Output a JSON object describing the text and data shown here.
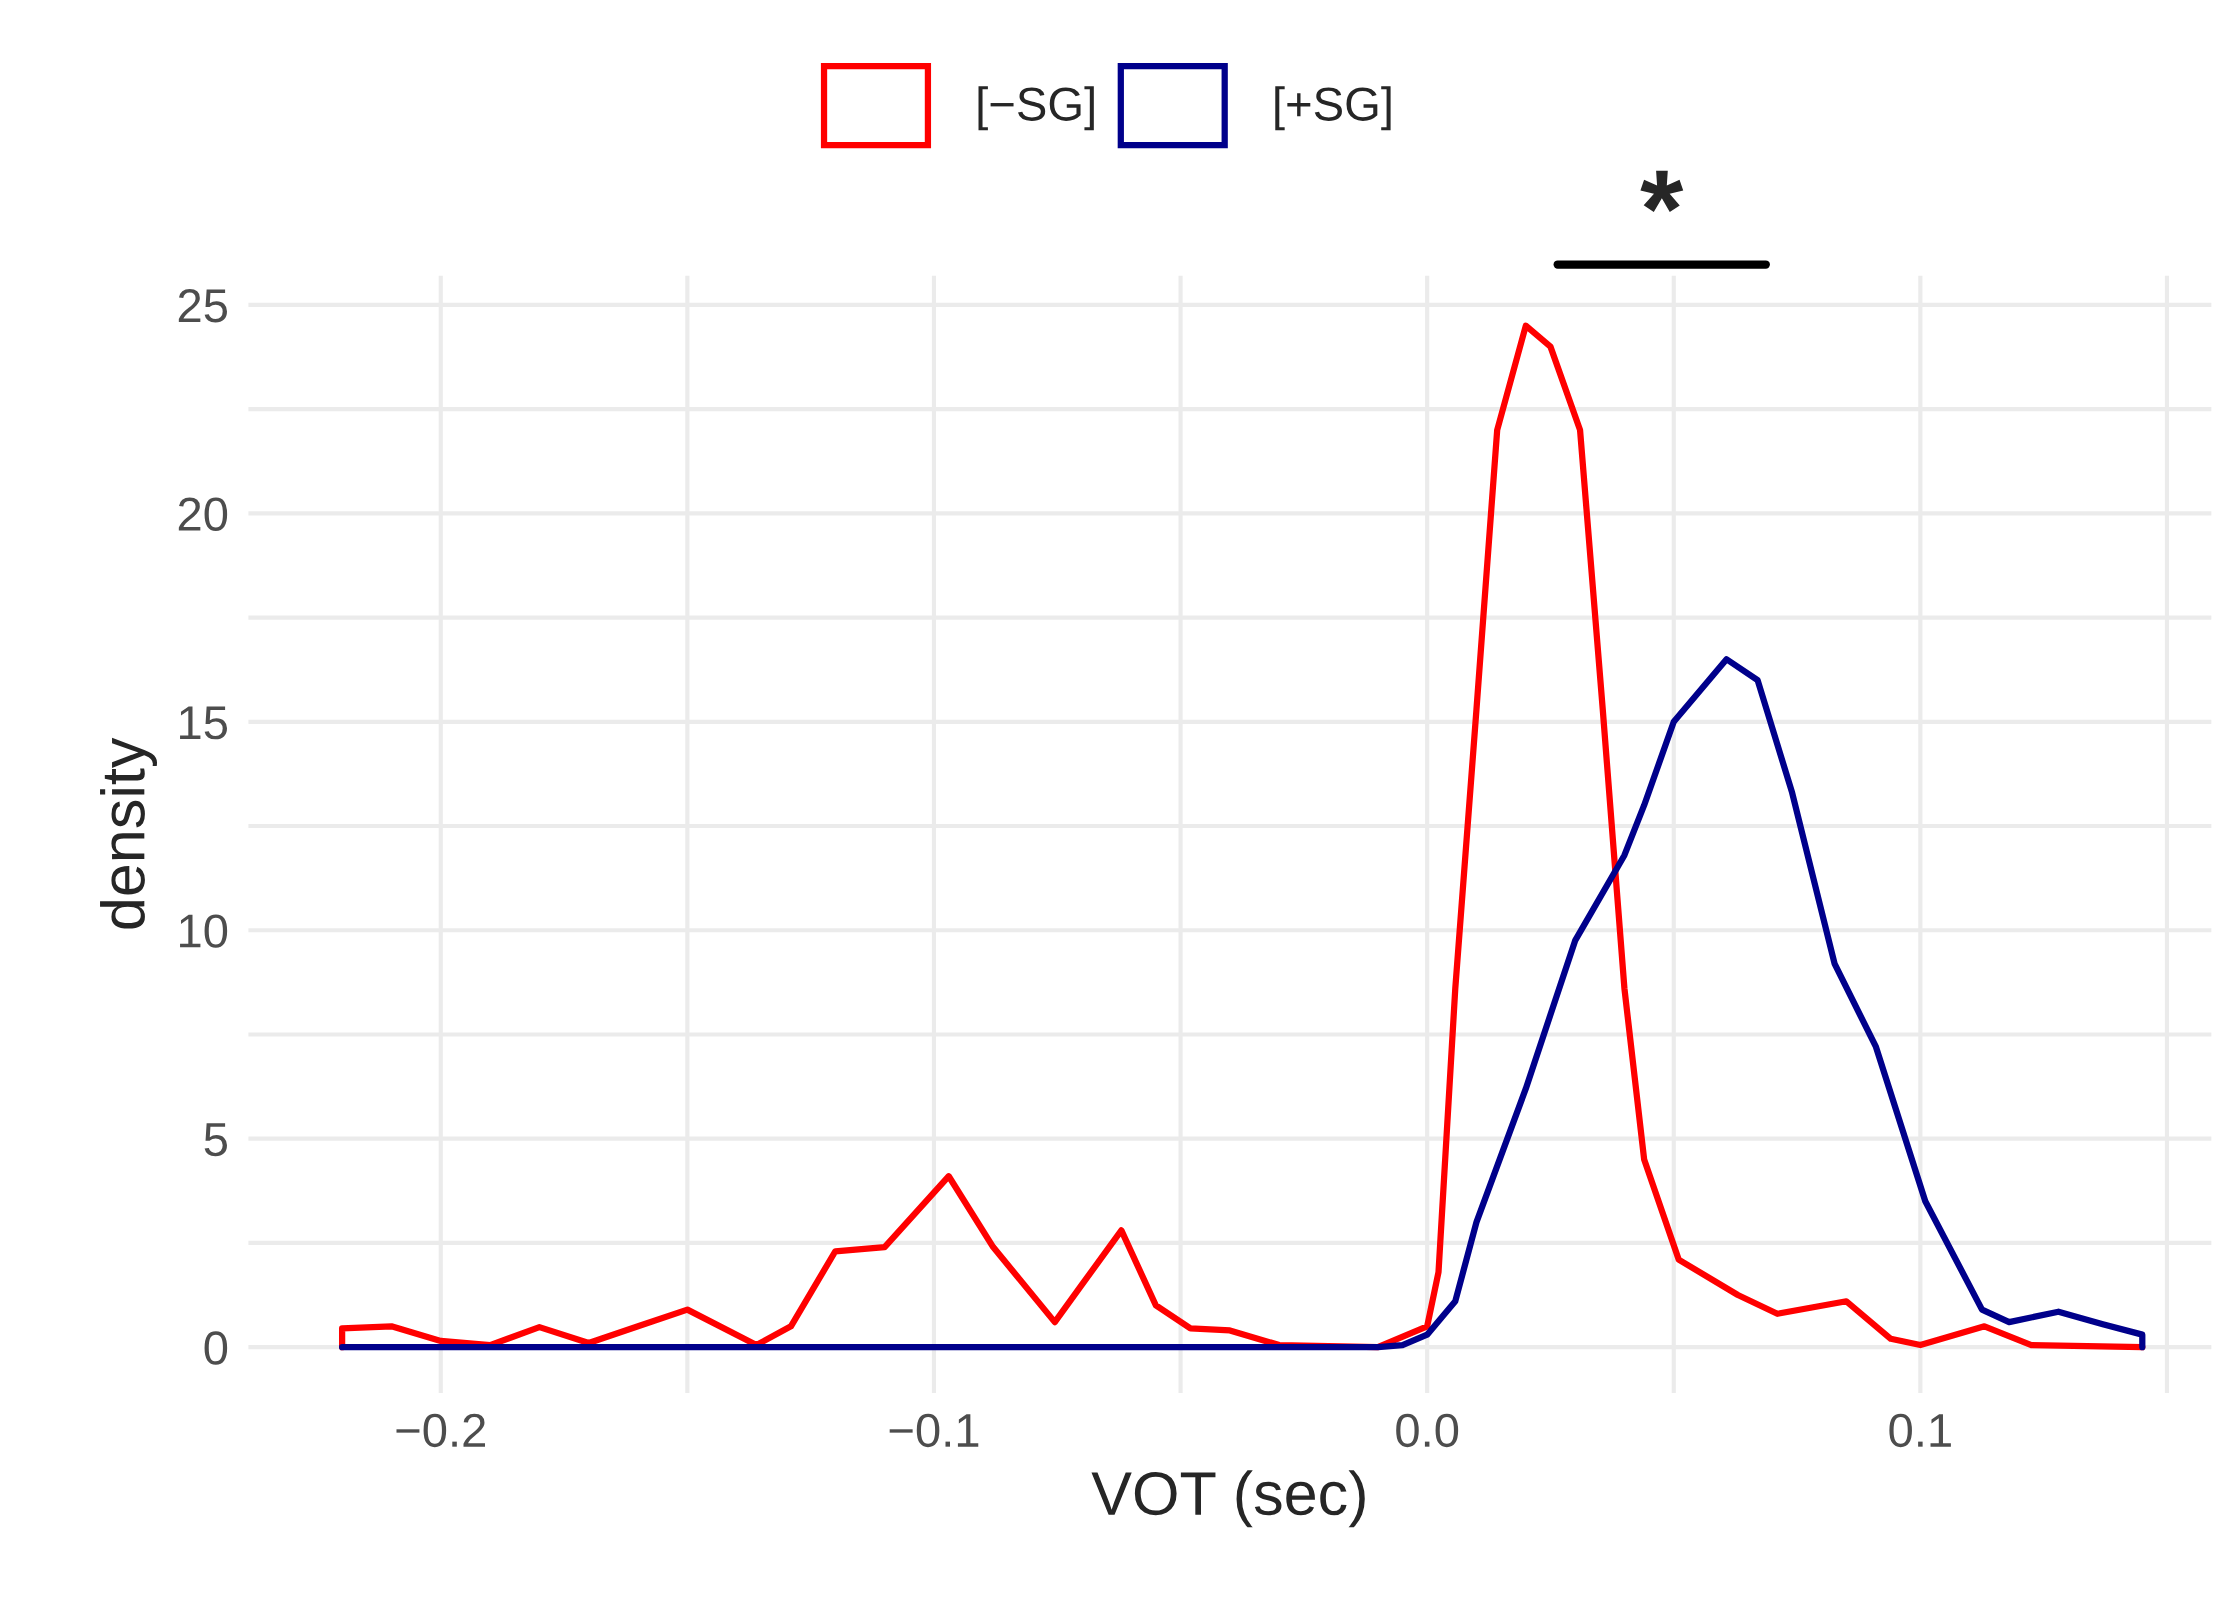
{
  "chart_data": {
    "type": "line",
    "xlabel": "VOT (sec)",
    "ylabel": "density",
    "xlim": [
      -0.239,
      0.159
    ],
    "ylim": [
      -1.1,
      25.7
    ],
    "xticks": [
      {
        "value": -0.2,
        "label": "−0.2"
      },
      {
        "value": -0.15,
        "label": null
      },
      {
        "value": -0.1,
        "label": "−0.1"
      },
      {
        "value": -0.05,
        "label": null
      },
      {
        "value": 0.0,
        "label": "0.0"
      },
      {
        "value": 0.05,
        "label": null
      },
      {
        "value": 0.1,
        "label": "0.1"
      },
      {
        "value": 0.15,
        "label": null
      }
    ],
    "yticks": [
      0,
      {
        "value": 2.5,
        "label": null
      },
      5,
      {
        "value": 7.5,
        "label": null
      },
      10,
      {
        "value": 12.5,
        "label": null
      },
      15,
      {
        "value": 17.5,
        "label": null
      },
      20,
      {
        "value": 22.5,
        "label": null
      },
      25
    ],
    "grid": true,
    "legend": "top",
    "series": [
      {
        "name": "[−SG]",
        "color": "#ff0000",
        "x": [
          -0.22,
          -0.22,
          -0.21,
          -0.2,
          -0.19,
          -0.18,
          -0.17,
          -0.16,
          -0.15,
          -0.136,
          -0.129,
          -0.12,
          -0.11,
          -0.097,
          -0.088,
          -0.0755,
          -0.07,
          -0.062,
          -0.055,
          -0.048,
          -0.04,
          -0.03,
          -0.01,
          0.0,
          0.0023,
          0.0057,
          0.01,
          0.0142,
          0.02,
          0.025,
          0.031,
          0.0356,
          0.04,
          0.044,
          0.051,
          0.063,
          0.071,
          0.085,
          0.094,
          0.1,
          0.113,
          0.1225,
          0.145
        ],
        "values": [
          0.0,
          0.45,
          0.5,
          0.15,
          0.05,
          0.48,
          0.1,
          0.5,
          0.9,
          0.05,
          0.5,
          2.3,
          2.4,
          4.1,
          2.4,
          0.6,
          1.5,
          2.8,
          1.0,
          0.45,
          0.4,
          0.05,
          0.0,
          0.5,
          1.8,
          8.6,
          15.3,
          22.0,
          24.5,
          24.0,
          22.0,
          15.3,
          8.6,
          4.5,
          2.1,
          1.25,
          0.8,
          1.1,
          0.2,
          0.05,
          0.5,
          0.05,
          0.0
        ]
      },
      {
        "name": "[+SG]",
        "color": "#00008b",
        "x": [
          -0.22,
          -0.01,
          -0.005,
          0.0,
          0.0057,
          0.01,
          0.02,
          0.03,
          0.04,
          0.044,
          0.05,
          0.0607,
          0.067,
          0.074,
          0.0826,
          0.091,
          0.101,
          0.1125,
          0.118,
          0.128,
          0.137,
          0.145,
          0.145
        ],
        "values": [
          0.0,
          0.0,
          0.05,
          0.3,
          1.1,
          3.0,
          6.2,
          9.75,
          11.8,
          13.0,
          15.0,
          16.5,
          16.0,
          13.3,
          9.2,
          7.2,
          3.5,
          0.9,
          0.6,
          0.85,
          0.55,
          0.3,
          0.0
        ]
      }
    ],
    "annotations": [
      "*"
    ]
  }
}
